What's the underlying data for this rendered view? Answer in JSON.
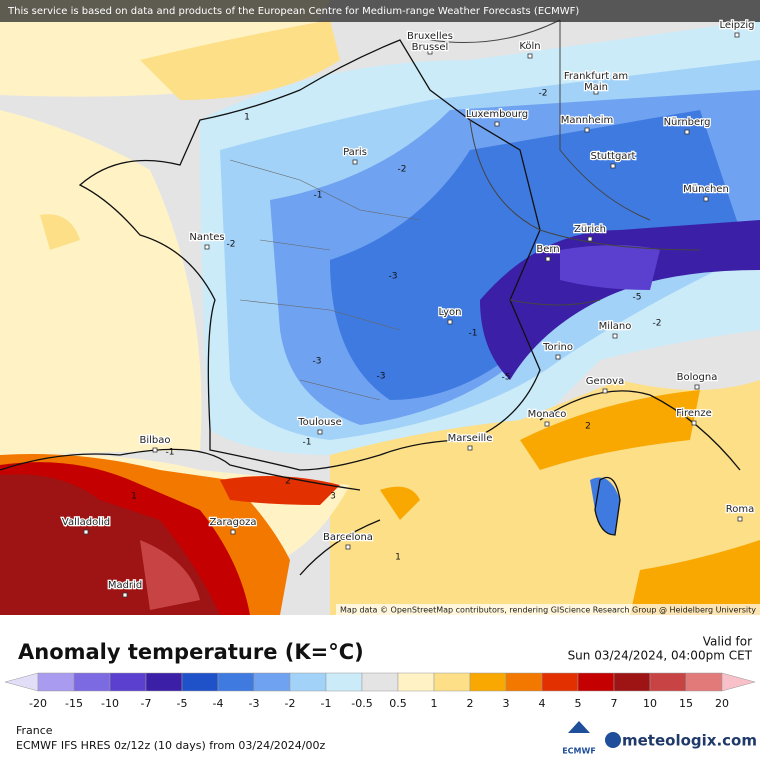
{
  "notice": "This service is based on data and products of the European Centre for Medium-range Weather Forecasts (ECMWF)",
  "attribution": "Map data © OpenStreetMap contributors, rendering GIScience Research Group @ Heidelberg University",
  "cities": [
    "Bruxelles Brussel",
    "Köln",
    "Leipzig",
    "Frankfurt am Main",
    "Luxembourg",
    "Mannheim",
    "Nürnberg",
    "Paris",
    "Stuttgart",
    "München",
    "Nantes",
    "Zürich",
    "Bern",
    "Lyon",
    "Milano",
    "Torino",
    "Bologna",
    "Genova",
    "Toulouse",
    "Monaco",
    "Firenze",
    "Marseille",
    "Bilbao",
    "Valladolid",
    "Zaragoza",
    "Barcelona",
    "Roma",
    "Madrid"
  ],
  "contour_labels": [
    1,
    -2,
    -2,
    -1,
    -2,
    -3,
    -1,
    -3,
    -3,
    -2,
    -5,
    -5,
    -1,
    -1,
    2,
    1,
    3,
    1,
    2
  ],
  "legend": {
    "title": "Anomaly temperature (K=°C)",
    "valid_label": "Valid for",
    "valid_time": "Sun 03/24/2024, 04:00pm CET",
    "ticks": [
      -20,
      -15,
      -10,
      -7,
      -5,
      -4,
      -3,
      -2,
      -1,
      -0.5,
      0.5,
      1,
      2,
      3,
      4,
      5,
      7,
      10,
      15,
      20
    ],
    "colors": [
      "#e2def8",
      "#a99cf0",
      "#7c6ae2",
      "#5b40d0",
      "#3b1fa6",
      "#1f52c8",
      "#3f7ae0",
      "#6fa2f0",
      "#a2d2f8",
      "#cbebf9",
      "#e4e4e4",
      "#fff3c6",
      "#fddf88",
      "#f8a800",
      "#f27800",
      "#e23000",
      "#c50000",
      "#9e1414",
      "#c84444",
      "#e37a7a",
      "#f8c0c8"
    ]
  },
  "footer": {
    "region": "France",
    "model": "ECMWF IFS HRES 0z/12z (10 days) from 03/24/2024/00z",
    "ecmwf": "ECMWF",
    "brand": "meteologix.com"
  }
}
